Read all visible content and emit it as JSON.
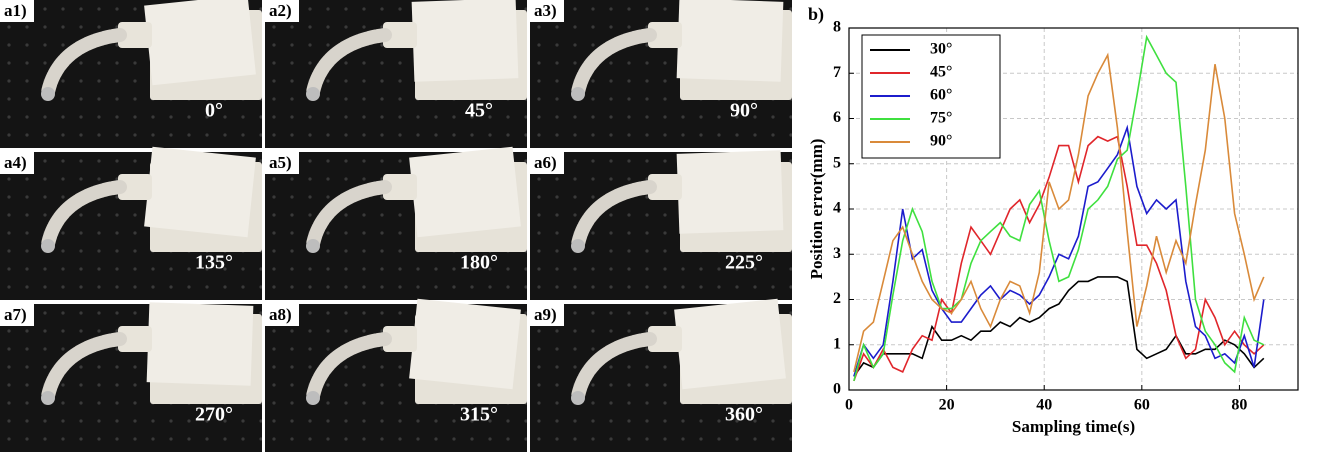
{
  "panels": [
    {
      "label": "a1)",
      "angle": "0°"
    },
    {
      "label": "a2)",
      "angle": "45°"
    },
    {
      "label": "a3)",
      "angle": "90°"
    },
    {
      "label": "a4)",
      "angle": "135°"
    },
    {
      "label": "a5)",
      "angle": "180°"
    },
    {
      "label": "a6)",
      "angle": "225°"
    },
    {
      "label": "a7)",
      "angle": "270°"
    },
    {
      "label": "a8)",
      "angle": "315°"
    },
    {
      "label": "a9)",
      "angle": "360°"
    }
  ],
  "chart_label": "b)",
  "chart_data": {
    "type": "line",
    "x_label": "Sampling time(s)",
    "y_label": "Position error(mm)",
    "x": [
      1,
      3,
      5,
      7,
      9,
      11,
      13,
      15,
      17,
      19,
      21,
      23,
      25,
      27,
      29,
      31,
      33,
      35,
      37,
      39,
      41,
      43,
      45,
      47,
      49,
      51,
      53,
      55,
      57,
      59,
      61,
      63,
      65,
      67,
      69,
      71,
      73,
      75,
      77,
      79,
      81,
      83,
      85
    ],
    "series": [
      {
        "name": "30°",
        "color": "#000000",
        "values": [
          0.3,
          0.6,
          0.5,
          0.8,
          0.8,
          0.8,
          0.8,
          0.7,
          1.4,
          1.1,
          1.1,
          1.2,
          1.1,
          1.3,
          1.3,
          1.5,
          1.4,
          1.6,
          1.5,
          1.6,
          1.8,
          1.9,
          2.2,
          2.4,
          2.4,
          2.5,
          2.5,
          2.5,
          2.4,
          0.9,
          0.7,
          0.8,
          0.9,
          1.2,
          0.8,
          0.8,
          0.9,
          0.9,
          1.1,
          1.0,
          0.8,
          0.5,
          0.7
        ]
      },
      {
        "name": "45°",
        "color": "#e0262b",
        "values": [
          0.2,
          0.8,
          0.5,
          0.9,
          0.5,
          0.4,
          0.9,
          1.2,
          1.1,
          2.0,
          1.7,
          2.8,
          3.6,
          3.3,
          3.0,
          3.5,
          4.0,
          4.2,
          3.7,
          4.1,
          4.7,
          5.4,
          5.4,
          4.6,
          5.4,
          5.6,
          5.5,
          5.6,
          4.5,
          3.2,
          3.2,
          2.8,
          2.2,
          1.2,
          0.7,
          0.9,
          2.0,
          1.6,
          1.0,
          1.3,
          1.0,
          0.8,
          1.0
        ]
      },
      {
        "name": "60°",
        "color": "#1c1ccc",
        "values": [
          0.3,
          1.0,
          0.7,
          1.0,
          2.4,
          4.0,
          2.9,
          3.1,
          2.2,
          1.8,
          1.5,
          1.5,
          1.8,
          2.1,
          2.3,
          2.0,
          2.2,
          2.1,
          1.9,
          2.1,
          2.5,
          3.0,
          2.9,
          3.4,
          4.5,
          4.6,
          4.9,
          5.2,
          5.8,
          4.5,
          3.9,
          4.2,
          4.0,
          4.2,
          2.4,
          1.4,
          1.2,
          0.7,
          0.8,
          0.6,
          1.2,
          0.5,
          2.0
        ]
      },
      {
        "name": "75°",
        "color": "#3fe03f",
        "values": [
          0.2,
          1.0,
          0.5,
          0.8,
          2.1,
          3.3,
          4.0,
          3.5,
          2.4,
          1.8,
          1.8,
          2.0,
          2.8,
          3.3,
          3.5,
          3.7,
          3.4,
          3.3,
          4.1,
          4.4,
          3.3,
          2.4,
          2.5,
          3.1,
          4.0,
          4.2,
          4.5,
          5.1,
          5.3,
          6.5,
          7.8,
          7.4,
          7.0,
          6.8,
          4.5,
          2.0,
          1.3,
          1.0,
          0.6,
          0.4,
          1.6,
          1.1,
          1.0
        ]
      },
      {
        "name": "90°",
        "color": "#d98a3a",
        "values": [
          0.4,
          1.3,
          1.5,
          2.4,
          3.3,
          3.6,
          3.0,
          2.4,
          2.0,
          1.8,
          1.7,
          2.0,
          2.4,
          1.8,
          1.4,
          2.0,
          2.4,
          2.3,
          1.7,
          2.6,
          4.6,
          4.0,
          4.2,
          5.2,
          6.5,
          7.0,
          7.4,
          5.8,
          3.5,
          1.4,
          2.3,
          3.4,
          2.6,
          3.3,
          2.8,
          4.1,
          5.3,
          7.2,
          6.0,
          3.9,
          3.0,
          2.0,
          2.5
        ]
      }
    ],
    "xlim": [
      0,
      92
    ],
    "xticks": [
      0,
      20,
      40,
      60,
      80
    ],
    "ylim": [
      0,
      8
    ],
    "yticks": [
      0,
      1,
      2,
      3,
      4,
      5,
      6,
      7,
      8
    ],
    "grid": true,
    "legend": "upper left"
  }
}
